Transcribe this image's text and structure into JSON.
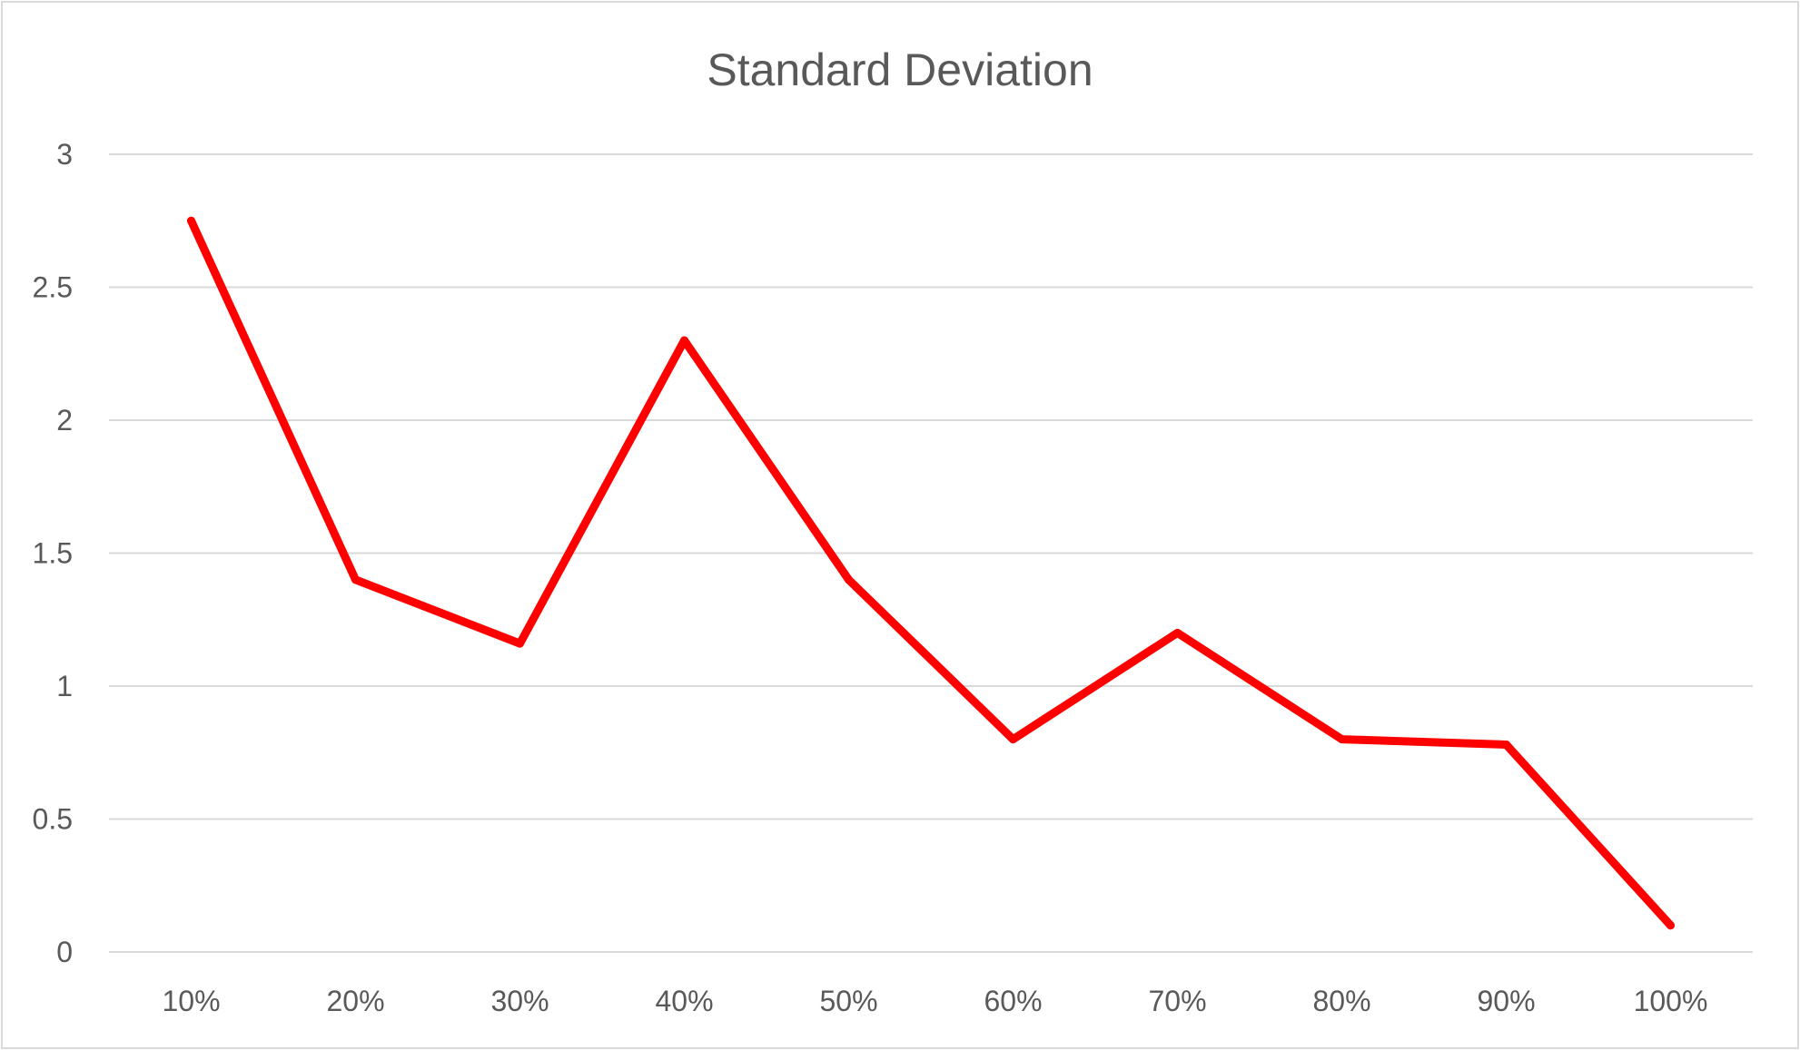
{
  "chart_data": {
    "type": "line",
    "title": "Standard Deviation",
    "xlabel": "",
    "ylabel": "",
    "categories": [
      "10%",
      "20%",
      "30%",
      "40%",
      "50%",
      "60%",
      "70%",
      "80%",
      "90%",
      "100%"
    ],
    "y_ticks": [
      "0",
      "0.5",
      "1",
      "1.5",
      "2",
      "2.5",
      "3"
    ],
    "ylim": [
      0,
      3
    ],
    "grid": true,
    "legend": "none",
    "series": [
      {
        "color": "#ff0000",
        "values": [
          2.75,
          1.4,
          1.16,
          2.3,
          1.4,
          0.8,
          1.2,
          0.8,
          0.78,
          0.1
        ]
      }
    ]
  }
}
